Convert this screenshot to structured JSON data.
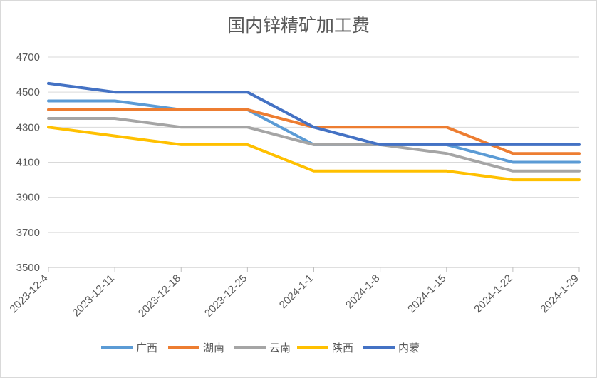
{
  "chart_data": {
    "type": "line",
    "title": "国内锌精矿加工费",
    "categories": [
      "2023-12-4",
      "2023-12-11",
      "2023-12-18",
      "2023-12-25",
      "2024-1-1",
      "2024-1-8",
      "2024-1-15",
      "2024-1-22",
      "2024-1-29"
    ],
    "ylim": [
      3500,
      4700
    ],
    "yticks": [
      3500,
      3700,
      3900,
      4100,
      4300,
      4500,
      4700
    ],
    "grid": true,
    "legend": "bottom",
    "series": [
      {
        "name": "广西",
        "color": "#5b9bd5",
        "values": [
          4450,
          4450,
          4400,
          4400,
          4200,
          4200,
          4200,
          4100,
          4100
        ]
      },
      {
        "name": "湖南",
        "color": "#ed7d31",
        "values": [
          4400,
          4400,
          4400,
          4400,
          4300,
          4300,
          4300,
          4150,
          4150
        ]
      },
      {
        "name": "云南",
        "color": "#a5a5a5",
        "values": [
          4350,
          4350,
          4300,
          4300,
          4200,
          4200,
          4150,
          4050,
          4050
        ]
      },
      {
        "name": "陕西",
        "color": "#ffc000",
        "values": [
          4300,
          4250,
          4200,
          4200,
          4050,
          4050,
          4050,
          4000,
          4000
        ]
      },
      {
        "name": "内蒙",
        "color": "#4472c4",
        "values": [
          4550,
          4500,
          4500,
          4500,
          4300,
          4200,
          4200,
          4200,
          4200
        ]
      }
    ]
  }
}
